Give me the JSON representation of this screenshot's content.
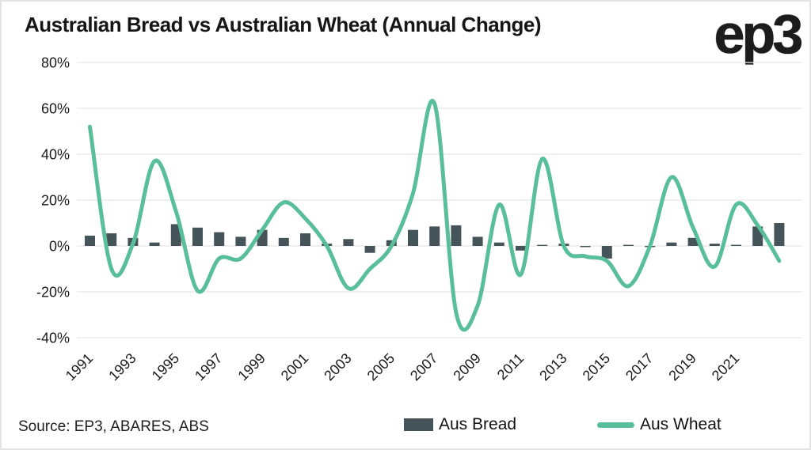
{
  "title": "Australian Bread vs Australian Wheat (Annual Change)",
  "logo_text": "ep3",
  "source_text": "Source: EP3, ABARES, ABS",
  "legend": {
    "bread_label": "Aus Bread",
    "wheat_label": "Aus Wheat"
  },
  "colors": {
    "bread_bar": "#455458",
    "wheat_line": "#58BF9A",
    "gridline": "#e8e8e8",
    "axis_text": "#1a1a1a",
    "title_text": "#161616"
  },
  "chart_data": {
    "type": "bar+line combo",
    "title": "Australian Bread vs Australian Wheat (Annual Change)",
    "x": [
      1991,
      1992,
      1993,
      1994,
      1995,
      1996,
      1997,
      1998,
      1999,
      2000,
      2001,
      2002,
      2003,
      2004,
      2005,
      2006,
      2007,
      2008,
      2009,
      2010,
      2011,
      2012,
      2013,
      2014,
      2015,
      2016,
      2017,
      2018,
      2019,
      2020,
      2021,
      2022,
      2023
    ],
    "series": [
      {
        "name": "Aus Bread",
        "type": "bar",
        "unit": "percent",
        "values": [
          4.5,
          5.5,
          3.5,
          1.5,
          9.5,
          8,
          6,
          4,
          7,
          3.5,
          5.5,
          1,
          3,
          -3,
          2.5,
          7,
          8.5,
          9,
          4,
          1.5,
          -2,
          0.2,
          1,
          -0.5,
          -5.5,
          0.3,
          -0.5,
          1.5,
          3.5,
          1,
          0.5,
          8.5,
          10
        ]
      },
      {
        "name": "Aus Wheat",
        "type": "line",
        "unit": "percent",
        "values": [
          52,
          -10,
          1,
          37,
          15,
          -19.5,
          -5.5,
          -5.5,
          7,
          19,
          12,
          0,
          -18.5,
          -10,
          0,
          23,
          62,
          -29,
          -26,
          18,
          -12.5,
          38,
          0,
          -4.5,
          -6.5,
          -17.5,
          0,
          30,
          8,
          -9,
          18,
          9,
          -6.5
        ]
      }
    ],
    "yticks": [
      80,
      60,
      40,
      20,
      0,
      -20,
      -40
    ],
    "ytick_format": "{v}%",
    "xticks": [
      1991,
      1993,
      1995,
      1997,
      1999,
      2001,
      2003,
      2005,
      2007,
      2009,
      2011,
      2013,
      2015,
      2017,
      2019,
      2021
    ],
    "ylim": [
      -45,
      85
    ],
    "grid": "horizontal",
    "xtick_rotation_deg": -45,
    "legend_position": "bottom"
  }
}
